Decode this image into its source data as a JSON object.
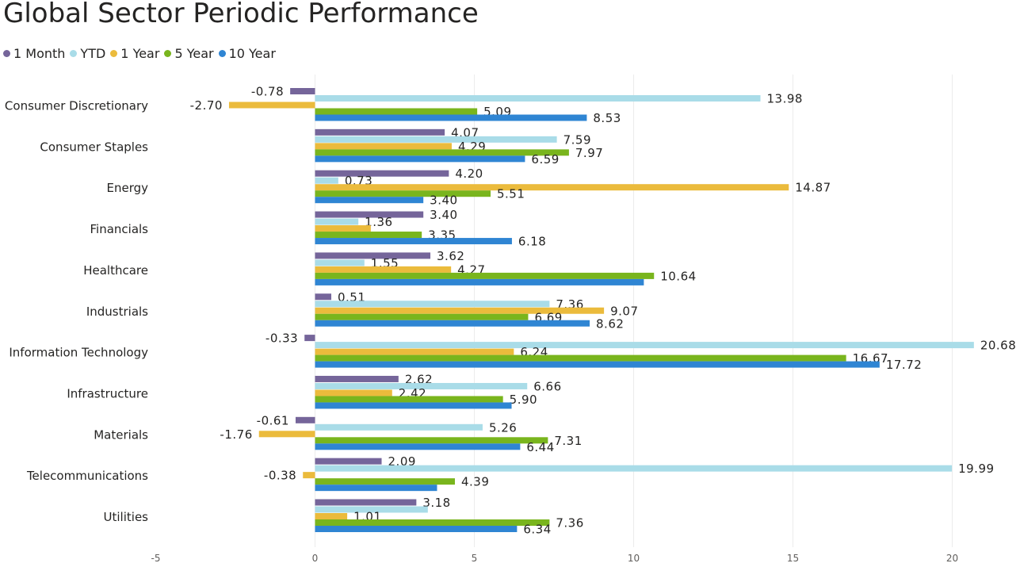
{
  "chart_data": {
    "type": "bar",
    "orientation": "horizontal",
    "title": "Global Sector Periodic Performance",
    "categories": [
      "Consumer Discretionary",
      "Consumer Staples",
      "Energy",
      "Financials",
      "Healthcare",
      "Industrials",
      "Information Technology",
      "Infrastructure",
      "Materials",
      "Telecommunications",
      "Utilities"
    ],
    "series": [
      {
        "name": "1 Month",
        "color": "#75659A",
        "values": [
          -0.78,
          4.07,
          4.2,
          3.4,
          3.62,
          0.51,
          -0.33,
          2.62,
          -0.61,
          2.09,
          3.18
        ],
        "labels": [
          "-0.78",
          "4.07",
          "4.20",
          "3.40",
          "3.62",
          "0.51",
          "-0.33",
          "2.62",
          "-0.61",
          "2.09",
          "3.18"
        ]
      },
      {
        "name": "YTD",
        "color": "#A9DCE8",
        "values": [
          13.98,
          7.59,
          0.73,
          1.36,
          1.55,
          7.36,
          20.68,
          6.66,
          5.26,
          19.99,
          3.54
        ],
        "labels": [
          "13.98",
          "7.59",
          "0.73",
          "1.36",
          "1.55",
          "7.36",
          "20.68",
          "6.66",
          "5.26",
          "19.99",
          ""
        ]
      },
      {
        "name": "1 Year",
        "color": "#EBBB3C",
        "values": [
          -2.7,
          4.29,
          14.87,
          1.75,
          4.27,
          9.07,
          6.24,
          2.42,
          -1.76,
          -0.38,
          1.01
        ],
        "labels": [
          "-2.70",
          "4.29",
          "14.87",
          "",
          "4.27",
          "9.07",
          "6.24",
          "2.42",
          "-1.76",
          "-0.38",
          "1.01"
        ]
      },
      {
        "name": "5 Year",
        "color": "#79B51D",
        "values": [
          5.09,
          7.97,
          5.51,
          3.35,
          10.64,
          6.69,
          16.67,
          5.9,
          7.31,
          4.39,
          7.36
        ],
        "labels": [
          "5.09",
          "7.97",
          "5.51",
          "3.35",
          "10.64",
          "6.69",
          "16.67",
          "5.90",
          "7.31",
          "4.39",
          "7.36"
        ]
      },
      {
        "name": "10 Year",
        "color": "#2F85D3",
        "values": [
          8.53,
          6.59,
          3.4,
          6.18,
          10.32,
          8.62,
          17.72,
          6.17,
          6.44,
          3.83,
          6.34
        ],
        "labels": [
          "8.53",
          "6.59",
          "3.40",
          "6.18",
          "",
          "8.62",
          "17.72",
          "",
          "6.44",
          "",
          "6.34"
        ]
      }
    ],
    "xlim": [
      -5,
      21
    ],
    "xticks": [
      "-5",
      "0",
      "5",
      "10",
      "15",
      "20"
    ],
    "grid": true,
    "legend": "top-left"
  }
}
